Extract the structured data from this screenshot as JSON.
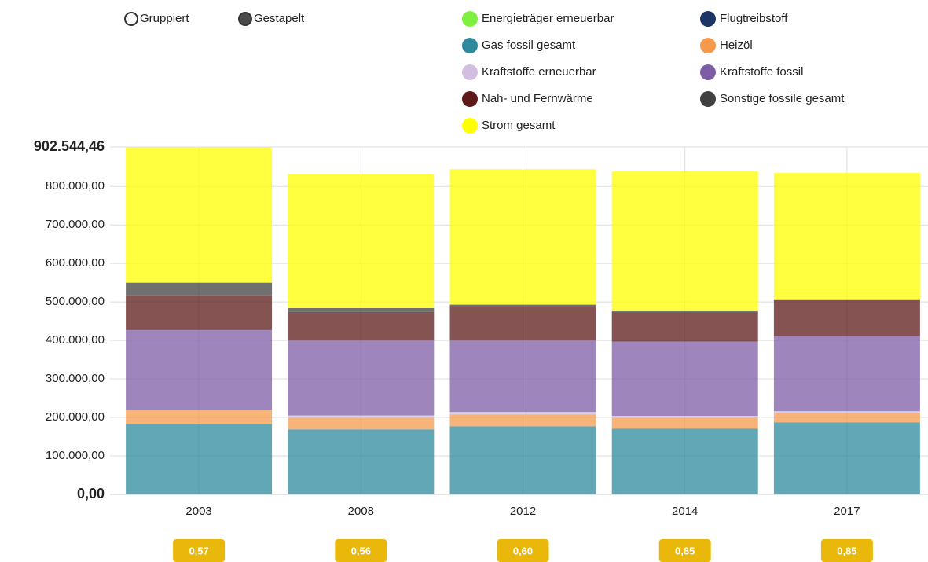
{
  "controls": {
    "options": [
      "Gruppiert",
      "Gestapelt"
    ],
    "selected": "Gestapelt"
  },
  "chart_data": {
    "type": "stacked-bar",
    "categories": [
      "2003",
      "2008",
      "2012",
      "2014",
      "2017"
    ],
    "series": [
      {
        "name": "Energieträger erneuerbar",
        "color": "#80f040",
        "values": [
          0,
          0,
          0,
          0,
          0
        ]
      },
      {
        "name": "Flugtreibstoff",
        "color": "#1a3566",
        "values": [
          0,
          0,
          0,
          0,
          0
        ]
      },
      {
        "name": "Gas fossil gesamt",
        "color": "#2e8a9c",
        "values": [
          183000,
          169000,
          177000,
          171000,
          187000
        ]
      },
      {
        "name": "Heizöl",
        "color": "#f5994c",
        "values": [
          37000,
          30000,
          31000,
          28000,
          25000
        ]
      },
      {
        "name": "Kraftstoffe erneuerbar",
        "color": "#d2bfe0",
        "values": [
          0,
          6000,
          6000,
          5000,
          4000
        ]
      },
      {
        "name": "Kraftstoffe fossil",
        "color": "#7d5ea6",
        "values": [
          207000,
          196000,
          187000,
          193000,
          195000
        ]
      },
      {
        "name": "Nah- und Fernwärme",
        "color": "#5e1a1a",
        "values": [
          90000,
          73000,
          88000,
          77000,
          94000
        ]
      },
      {
        "name": "Sonstige fossile gesamt",
        "color": "#404040",
        "values": [
          33000,
          10000,
          4000,
          2000,
          0
        ]
      },
      {
        "name": "Strom gesamt",
        "color": "#ffff00",
        "values": [
          352544.46,
          348000,
          352000,
          363000,
          330000
        ]
      }
    ],
    "ylim": [
      0,
      902544.46
    ],
    "yticks": [
      {
        "value": 0,
        "label": "0,00"
      },
      {
        "value": 100000,
        "label": "100.000,00"
      },
      {
        "value": 200000,
        "label": "200.000,00"
      },
      {
        "value": 300000,
        "label": "300.000,00"
      },
      {
        "value": 400000,
        "label": "400.000,00"
      },
      {
        "value": 500000,
        "label": "500.000,00"
      },
      {
        "value": 600000,
        "label": "600.000,00"
      },
      {
        "value": 700000,
        "label": "700.000,00"
      },
      {
        "value": 800000,
        "label": "800.000,00"
      },
      {
        "value": 902544.46,
        "label": "902.544,46"
      }
    ],
    "grid": true,
    "badges": [
      "0,57",
      "0,56",
      "0,60",
      "0,85",
      "0,85"
    ]
  }
}
